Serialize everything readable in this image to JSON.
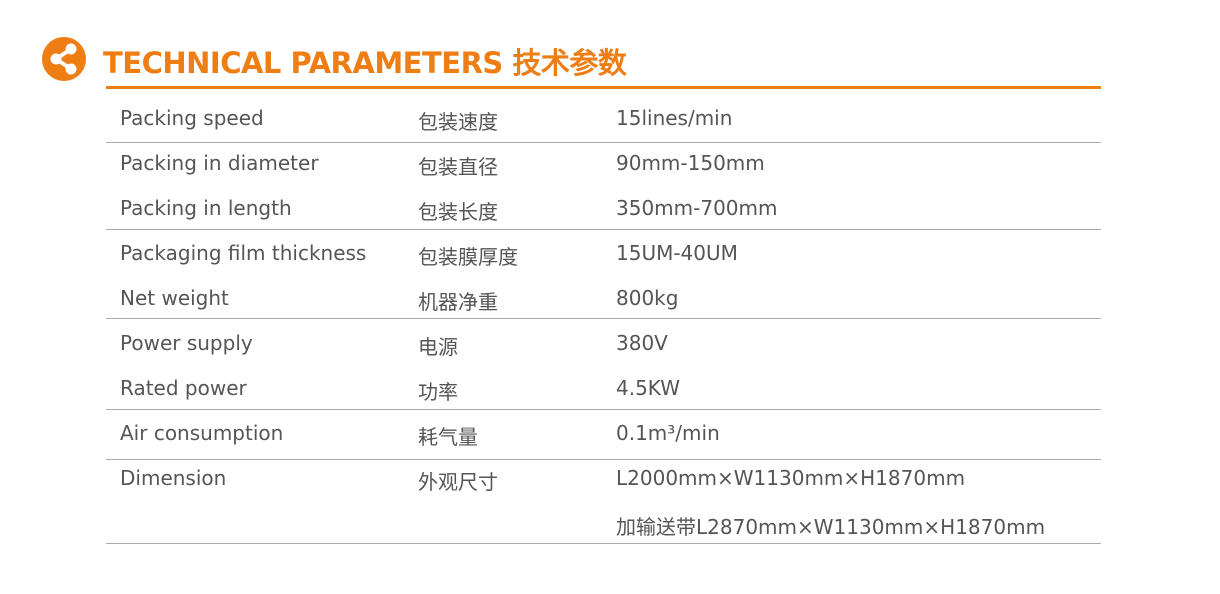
{
  "header": {
    "title": "TECHNICAL PARAMETERS 技术参数",
    "icon": "share-icon",
    "accent": "#ee7d14"
  },
  "rows": [
    {
      "en": "Packing speed",
      "zh": "包装速度",
      "value": "15lines/min"
    },
    {
      "en": "Packing in diameter",
      "zh": "包装直径",
      "value": "90mm-150mm"
    },
    {
      "en": "Packing in length",
      "zh": "包装长度",
      "value": "350mm-700mm"
    },
    {
      "en": "Packaging film thickness",
      "zh": "包装膜厚度",
      "value": "15UM-40UM"
    },
    {
      "en": "Net weight",
      "zh": "机器净重",
      "value": "800kg"
    },
    {
      "en": "Power supply",
      "zh": "电源",
      "value": "380V"
    },
    {
      "en": "Rated power",
      "zh": "功率",
      "value": "4.5KW"
    },
    {
      "en": "Air consumption",
      "zh": "耗气量",
      "value": "0.1m³/min"
    },
    {
      "en": "Dimension",
      "zh": "外观尺寸",
      "value": "L2000mm×W1130mm×H1870mm"
    },
    {
      "en": "",
      "zh": "",
      "value": "加输送带L2870mm×W1130mm×H1870mm"
    }
  ]
}
